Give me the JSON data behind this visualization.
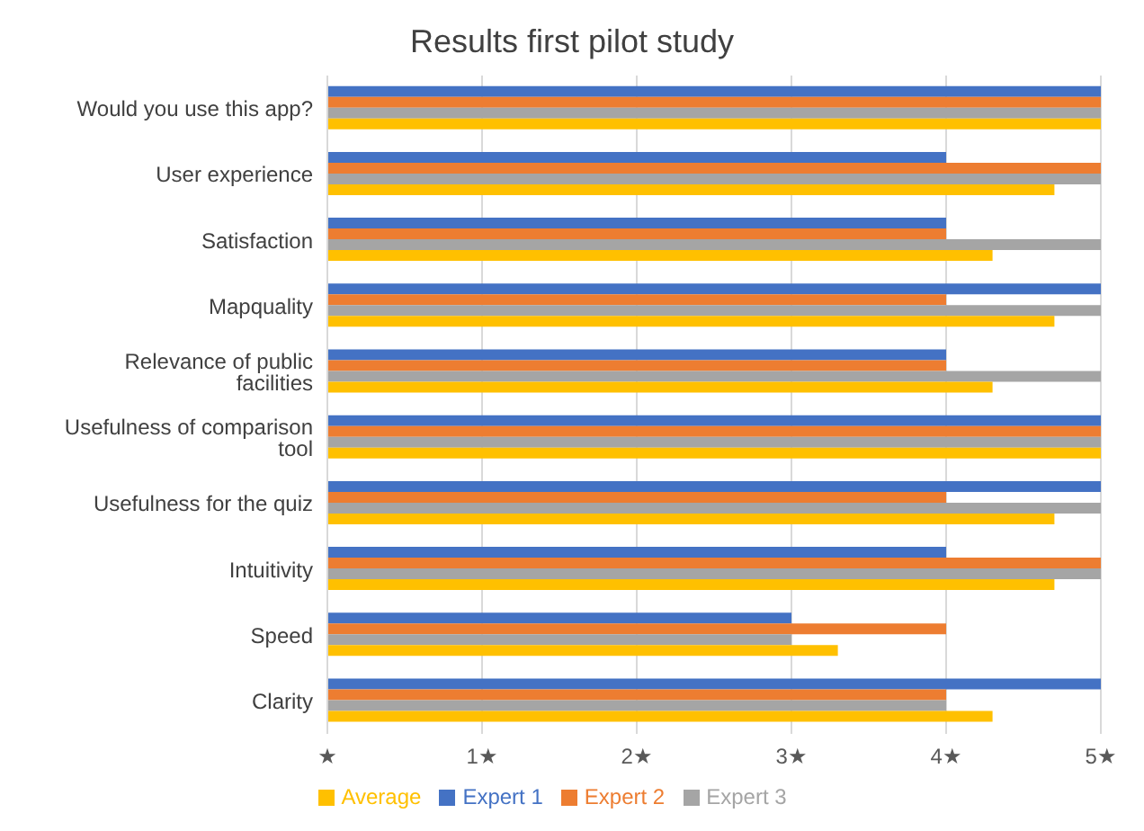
{
  "chart_data": {
    "type": "bar",
    "orientation": "horizontal",
    "title": "Results first pilot study",
    "categories": [
      "Would you use this app?",
      "User experience",
      "Satisfaction",
      "Mapquality",
      "Relevance of public facilities",
      "Usefulness of comparison tool",
      "Usefulness for the quiz",
      "Intuitivity",
      "Speed",
      "Clarity"
    ],
    "series": [
      {
        "name": "Expert 1",
        "color": "#4472c4",
        "values": [
          5,
          4,
          4,
          5,
          4,
          5,
          5,
          4,
          3,
          5
        ]
      },
      {
        "name": "Expert 2",
        "color": "#ed7d31",
        "values": [
          5,
          5,
          4,
          4,
          4,
          5,
          4,
          5,
          4,
          4
        ]
      },
      {
        "name": "Expert 3",
        "color": "#a5a5a5",
        "values": [
          5,
          5,
          5,
          5,
          5,
          5,
          5,
          5,
          3,
          4
        ]
      },
      {
        "name": "Average",
        "color": "#ffc000",
        "values": [
          5,
          4.7,
          4.3,
          4.7,
          4.3,
          5,
          4.7,
          4.7,
          3.3,
          4.3
        ]
      }
    ],
    "xlim": [
      0,
      5
    ],
    "xticks": [
      {
        "value": 0,
        "label": "★"
      },
      {
        "value": 1,
        "label": "1★"
      },
      {
        "value": 2,
        "label": "2★"
      },
      {
        "value": 3,
        "label": "3★"
      },
      {
        "value": 4,
        "label": "4★"
      },
      {
        "value": 5,
        "label": "5★"
      }
    ],
    "grid": "x",
    "legend": "bottom"
  }
}
